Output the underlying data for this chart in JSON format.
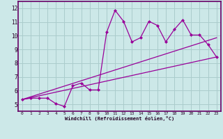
{
  "xlabel": "Windchill (Refroidissement éolien,°C)",
  "background_color": "#cce8e8",
  "grid_color": "#aacccc",
  "line_color": "#990099",
  "xlim": [
    -0.5,
    23.5
  ],
  "ylim": [
    4.5,
    12.5
  ],
  "xticks": [
    0,
    1,
    2,
    3,
    4,
    5,
    6,
    7,
    8,
    9,
    10,
    11,
    12,
    13,
    14,
    15,
    16,
    17,
    18,
    19,
    20,
    21,
    22,
    23
  ],
  "yticks": [
    5,
    6,
    7,
    8,
    9,
    10,
    11,
    12
  ],
  "line1_x": [
    0,
    1,
    2,
    3,
    4,
    5,
    6,
    7,
    8,
    9,
    10,
    11,
    12,
    13,
    14,
    15,
    16,
    17,
    18,
    19,
    20,
    21,
    22,
    23
  ],
  "line1_y": [
    5.35,
    5.45,
    5.45,
    5.45,
    5.05,
    4.85,
    6.35,
    6.55,
    6.05,
    6.05,
    10.25,
    11.85,
    11.05,
    9.55,
    9.85,
    11.05,
    10.75,
    9.55,
    10.45,
    11.15,
    10.05,
    10.05,
    9.35,
    8.45
  ],
  "line2_x": [
    0,
    23
  ],
  "line2_y": [
    5.35,
    8.45
  ],
  "line3_x": [
    0,
    23
  ],
  "line3_y": [
    5.35,
    9.85
  ]
}
